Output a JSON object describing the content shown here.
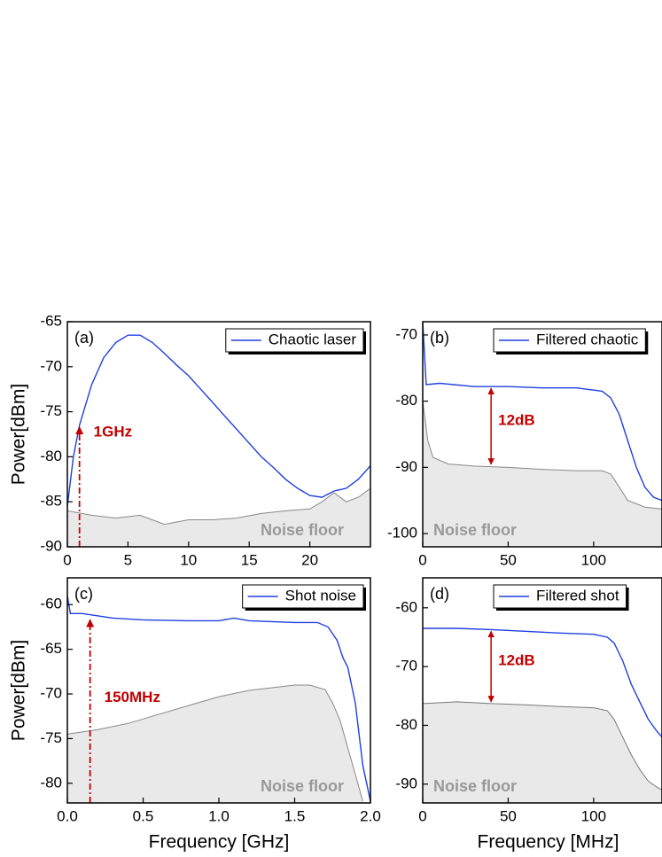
{
  "chart_data": [
    {
      "type": "line",
      "panel": "(a)",
      "ylabel": "Power[dBm]",
      "xlim": [
        0,
        25
      ],
      "xticks": [
        0,
        5,
        10,
        15,
        20
      ],
      "ylim": [
        -90,
        -65
      ],
      "yticks": [
        -65,
        -70,
        -75,
        -80,
        -85,
        -90
      ],
      "legend": "upper right",
      "series": [
        {
          "name": "Chaotic laser",
          "color": "#1f3fe0",
          "x": [
            0,
            0.5,
            1,
            2,
            3,
            4,
            5,
            6,
            7,
            8,
            9,
            10,
            11,
            12,
            13,
            14,
            15,
            16,
            17,
            18,
            19,
            20,
            21,
            22,
            23,
            24,
            25
          ],
          "values": [
            -85.5,
            -80,
            -76.5,
            -72,
            -69,
            -67.3,
            -66.5,
            -66.5,
            -67.3,
            -68.5,
            -69.8,
            -71,
            -72.5,
            -74,
            -75.5,
            -77,
            -78.5,
            -80,
            -81.2,
            -82.5,
            -83.5,
            -84.3,
            -84.5,
            -83.8,
            -83.5,
            -82.5,
            -81
          ]
        },
        {
          "name": "Noise floor",
          "color": "#888888",
          "x": [
            0,
            2,
            4,
            6,
            8,
            10,
            12,
            14,
            16,
            18,
            20,
            21,
            22,
            23,
            24,
            25
          ],
          "values": [
            -86,
            -86.5,
            -86.8,
            -86.5,
            -87.5,
            -87,
            -87,
            -86.8,
            -86.3,
            -86,
            -85.8,
            -85,
            -84,
            -85,
            -84.5,
            -83.5
          ]
        }
      ],
      "arrow": {
        "x": 1,
        "y": -76.5,
        "label": "1GHz"
      }
    },
    {
      "type": "line",
      "panel": "(b)",
      "xlim": [
        0,
        140
      ],
      "xticks": [
        0,
        50,
        100
      ],
      "ylim": [
        -102,
        -68
      ],
      "yticks": [
        -70,
        -80,
        -90,
        -100
      ],
      "legend": "upper right",
      "series": [
        {
          "name": "Filtered chaotic",
          "color": "#1f3fe0",
          "x": [
            0,
            2,
            10,
            30,
            50,
            70,
            90,
            105,
            110,
            115,
            120,
            125,
            130,
            135,
            140
          ],
          "values": [
            -68,
            -77.5,
            -77.3,
            -77.8,
            -77.8,
            -78,
            -78,
            -78.5,
            -79.5,
            -82,
            -86,
            -90,
            -93,
            -94.5,
            -95
          ]
        },
        {
          "name": "Noise floor",
          "color": "#888888",
          "x": [
            0,
            3,
            6,
            15,
            30,
            50,
            70,
            90,
            105,
            110,
            115,
            120,
            125,
            130,
            140
          ],
          "values": [
            -80,
            -86,
            -88.5,
            -89.5,
            -89.8,
            -90,
            -90.3,
            -90.5,
            -90.5,
            -91,
            -93,
            -95,
            -95.5,
            -96,
            -96.3
          ]
        }
      ],
      "arrow": {
        "x": 40,
        "y": [
          -77.8,
          -89.8
        ],
        "label": "12dB"
      }
    },
    {
      "type": "line",
      "panel": "(c)",
      "ylabel": "Power[dBm]",
      "xlabel": "Frequency [GHz]",
      "xlim": [
        0,
        2
      ],
      "xticks": [
        {
          "value": 0,
          "label": "0.0"
        },
        0.5,
        {
          "value": 1,
          "label": "1.0"
        },
        1.5,
        {
          "value": 2,
          "label": "2.0"
        }
      ],
      "ylim": [
        -82.2,
        -57
      ],
      "yticks": [
        -60,
        -65,
        -70,
        -75,
        -80
      ],
      "legend": "upper right",
      "series": [
        {
          "name": "Shot noise",
          "color": "#1f3fe0",
          "x": [
            0,
            0.02,
            0.1,
            0.3,
            0.5,
            0.8,
            1.0,
            1.1,
            1.2,
            1.5,
            1.65,
            1.72,
            1.78,
            1.82,
            1.85,
            1.9,
            1.95,
            2.0
          ],
          "values": [
            -59,
            -61,
            -61,
            -61.5,
            -61.7,
            -61.8,
            -61.8,
            -61.5,
            -61.8,
            -62,
            -62,
            -62.5,
            -64,
            -66,
            -67,
            -71,
            -78,
            -82
          ]
        },
        {
          "name": "Noise floor",
          "color": "#888888",
          "x": [
            0,
            0.2,
            0.4,
            0.6,
            0.8,
            1.0,
            1.2,
            1.4,
            1.5,
            1.6,
            1.7,
            1.75,
            1.8,
            1.85,
            1.9,
            1.95
          ],
          "values": [
            -74.5,
            -74,
            -73.3,
            -72.3,
            -71.3,
            -70.3,
            -69.6,
            -69.2,
            -69,
            -69,
            -69.5,
            -71,
            -73,
            -76,
            -79,
            -82
          ]
        }
      ],
      "arrow": {
        "x": 0.15,
        "y": -61.5,
        "label": "150MHz"
      }
    },
    {
      "type": "line",
      "panel": "(d)",
      "xlabel": "Frequency [MHz]",
      "xlim": [
        0,
        140
      ],
      "xticks": [
        0,
        50,
        100
      ],
      "ylim": [
        -93.2,
        -54.9
      ],
      "yticks": [
        -60,
        -70,
        -80,
        -90
      ],
      "legend": "upper right",
      "series": [
        {
          "name": "Filtered shot",
          "color": "#1f3fe0",
          "x": [
            0,
            20,
            40,
            60,
            80,
            100,
            108,
            112,
            117,
            122,
            127,
            132,
            137,
            140
          ],
          "values": [
            -63.5,
            -63.5,
            -63.7,
            -64,
            -64.3,
            -64.5,
            -65,
            -66,
            -69,
            -73,
            -76,
            -79,
            -81,
            -82
          ]
        },
        {
          "name": "Noise floor",
          "color": "#777777",
          "x": [
            0,
            20,
            40,
            60,
            80,
            100,
            108,
            112,
            117,
            122,
            127,
            132,
            137,
            140
          ],
          "values": [
            -76.3,
            -76,
            -76.3,
            -76.5,
            -76.8,
            -77,
            -77.5,
            -79,
            -82,
            -85,
            -87.5,
            -89.5,
            -90.5,
            -91
          ]
        }
      ],
      "arrow": {
        "x": 40,
        "y": [
          -63.7,
          -76.3
        ],
        "label": "12dB"
      }
    }
  ]
}
